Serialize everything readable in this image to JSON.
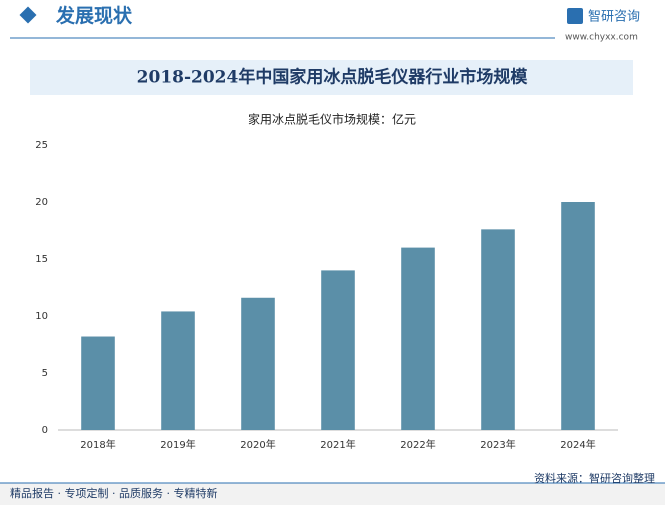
{
  "header": {
    "section": "发展现状",
    "brand": "智研咨询",
    "url": "www.chyxx.com"
  },
  "chart_data": {
    "type": "bar",
    "title": "2018-2024年中国家用冰点脱毛仪器行业市场规模",
    "subtitle": "家用冰点脱毛仪市场规模：亿元",
    "categories": [
      "2018年",
      "2019年",
      "2020年",
      "2021年",
      "2022年",
      "2023年",
      "2024年"
    ],
    "values": [
      8.2,
      10.4,
      11.6,
      14.0,
      16.0,
      17.6,
      20.0
    ],
    "color": "#5b8fa8",
    "ylim": [
      0,
      25
    ],
    "yticks": [
      0,
      5,
      10,
      15,
      20,
      25
    ],
    "grid": false
  },
  "footer": {
    "tagline": "精品报告 · 专项定制 · 品质服务 · 专精特新",
    "source": "资料来源：智研咨询整理"
  }
}
